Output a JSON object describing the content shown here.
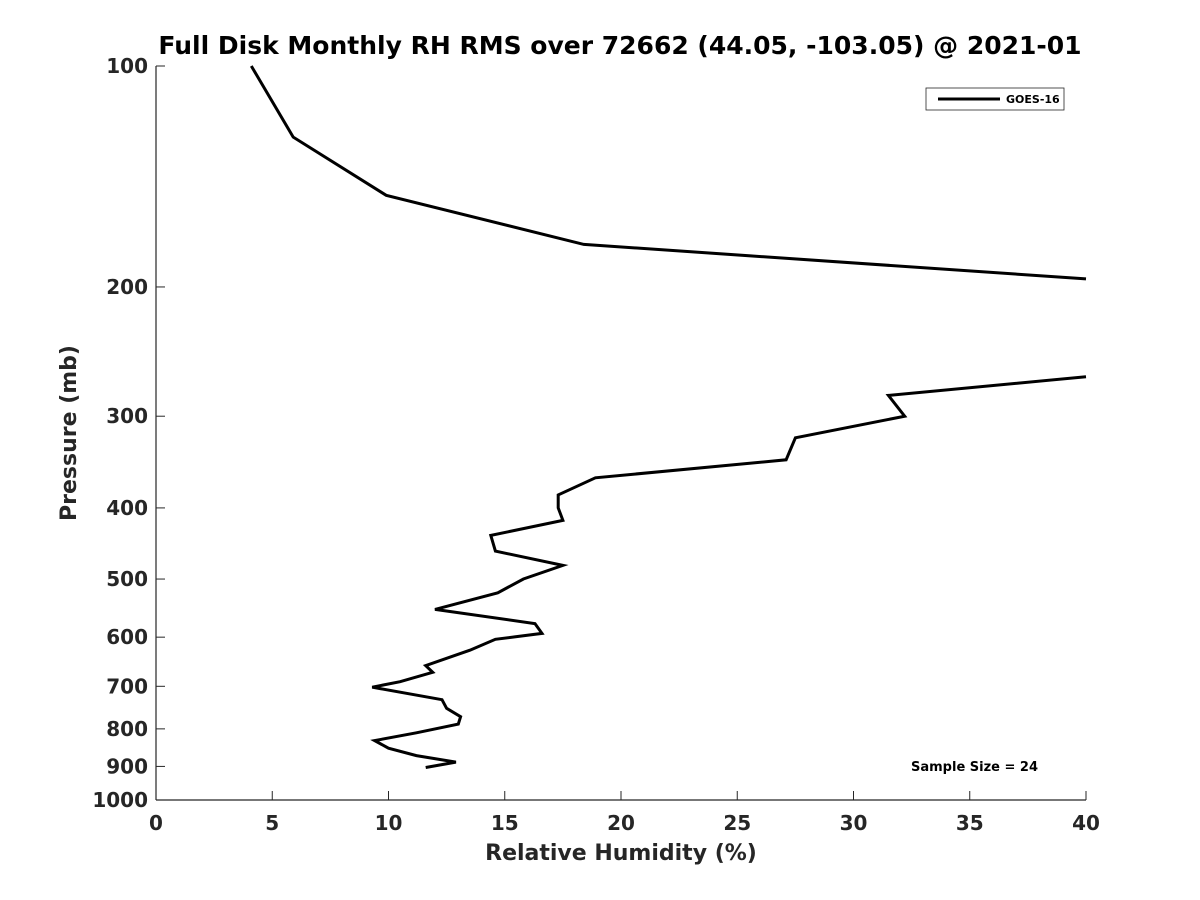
{
  "chart_data": {
    "type": "line",
    "title": "Full Disk Monthly RH RMS over 72662 (44.05, -103.05) @ 2021-01",
    "xlabel": "Relative Humidity (%)",
    "ylabel": "Pressure (mb)",
    "xlim": [
      0,
      40
    ],
    "ylim": [
      100,
      1000
    ],
    "y_scale": "log",
    "y_reversed": true,
    "grid": false,
    "legend_position": "top-right",
    "x_ticks": [
      0,
      5,
      10,
      15,
      20,
      25,
      30,
      35,
      40
    ],
    "x_tick_labels": [
      "0",
      "5",
      "10",
      "15",
      "20",
      "25",
      "30",
      "35",
      "40"
    ],
    "y_ticks": [
      100,
      200,
      300,
      400,
      500,
      600,
      700,
      800,
      900,
      1000
    ],
    "y_tick_labels": [
      "100",
      "200",
      "300",
      "400",
      "500",
      "600",
      "700",
      "800",
      "900",
      "1000"
    ],
    "series": [
      {
        "name": "GOES-16",
        "color": "#000000",
        "segments": [
          [
            {
              "x": 4.1,
              "y": 100
            },
            {
              "x": 5.9,
              "y": 125
            },
            {
              "x": 9.9,
              "y": 150
            },
            {
              "x": 18.4,
              "y": 175
            },
            {
              "x": 40.0,
              "y": 195
            }
          ],
          [
            {
              "x": 40.0,
              "y": 265
            },
            {
              "x": 31.5,
              "y": 281
            },
            {
              "x": 32.2,
              "y": 300
            },
            {
              "x": 27.5,
              "y": 321
            },
            {
              "x": 27.1,
              "y": 344
            },
            {
              "x": 18.9,
              "y": 364
            },
            {
              "x": 17.3,
              "y": 384
            },
            {
              "x": 17.3,
              "y": 400
            },
            {
              "x": 17.5,
              "y": 416
            },
            {
              "x": 14.4,
              "y": 436
            },
            {
              "x": 14.6,
              "y": 458
            },
            {
              "x": 17.5,
              "y": 479
            },
            {
              "x": 15.8,
              "y": 500
            },
            {
              "x": 14.7,
              "y": 522
            },
            {
              "x": 12.0,
              "y": 550
            },
            {
              "x": 16.3,
              "y": 575
            },
            {
              "x": 16.6,
              "y": 593
            },
            {
              "x": 14.6,
              "y": 604
            },
            {
              "x": 13.5,
              "y": 625
            },
            {
              "x": 11.6,
              "y": 656
            },
            {
              "x": 11.9,
              "y": 670
            },
            {
              "x": 10.5,
              "y": 690
            },
            {
              "x": 9.3,
              "y": 702
            },
            {
              "x": 12.3,
              "y": 730
            },
            {
              "x": 12.5,
              "y": 750
            },
            {
              "x": 13.1,
              "y": 770
            },
            {
              "x": 13.0,
              "y": 788
            },
            {
              "x": 11.2,
              "y": 810
            },
            {
              "x": 9.4,
              "y": 830
            },
            {
              "x": 10.0,
              "y": 850
            },
            {
              "x": 11.2,
              "y": 870
            },
            {
              "x": 12.9,
              "y": 888
            },
            {
              "x": 11.6,
              "y": 903
            }
          ]
        ]
      }
    ],
    "annotations": [
      {
        "text": "Sample Size = 24",
        "x": 34,
        "y": 900
      }
    ]
  }
}
